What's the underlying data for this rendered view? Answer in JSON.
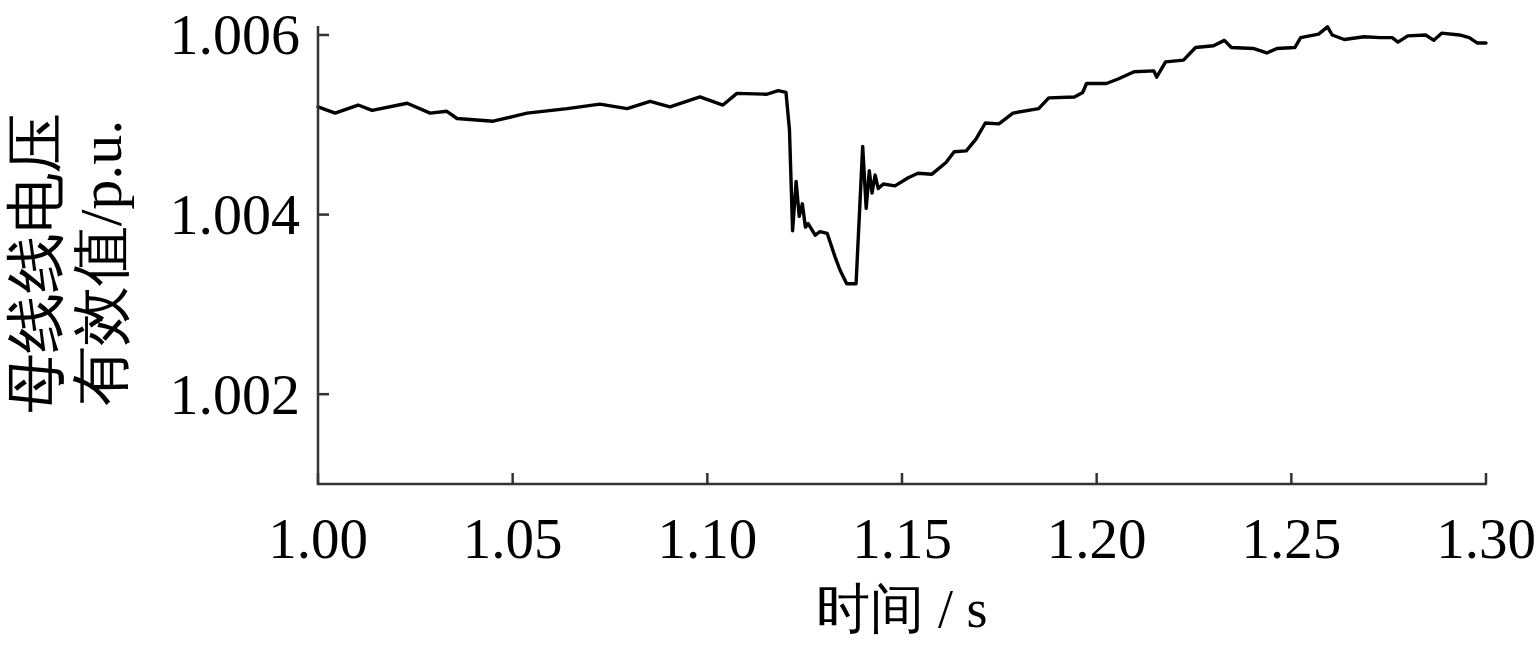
{
  "chart_data": {
    "type": "line",
    "xlabel": "时间 / s",
    "ylabel": "母线线电压有效值/p.u.",
    "line_style": "solid",
    "xlim": [
      1.0,
      1.3
    ],
    "ylim": [
      1.001,
      1.0061
    ],
    "xticks": [
      {
        "value": 1.0,
        "label": "1.00"
      },
      {
        "value": 1.05,
        "label": "1.05"
      },
      {
        "value": 1.1,
        "label": "1.10"
      },
      {
        "value": 1.15,
        "label": "1.15"
      },
      {
        "value": 1.2,
        "label": "1.20"
      },
      {
        "value": 1.25,
        "label": "1.25"
      },
      {
        "value": 1.3,
        "label": "1.30"
      }
    ],
    "yticks": [
      1.002,
      1.004,
      1.006
    ],
    "series": [
      {
        "color": "#000000",
        "x": [
          1.0,
          1.0044,
          1.0103,
          1.0139,
          1.0229,
          1.0288,
          1.0331,
          1.0357,
          1.045,
          1.0537,
          1.064,
          1.0724,
          1.0794,
          1.0853,
          1.0904,
          1.0981,
          1.104,
          1.1076,
          1.1153,
          1.1182,
          1.1202,
          1.1211,
          1.1219,
          1.1228,
          1.1236,
          1.1244,
          1.1252,
          1.1259,
          1.1277,
          1.1289,
          1.1308,
          1.1328,
          1.1341,
          1.1358,
          1.1382,
          1.1399,
          1.1408,
          1.1416,
          1.1423,
          1.1431,
          1.1439,
          1.1452,
          1.1482,
          1.1516,
          1.1541,
          1.1577,
          1.1613,
          1.1634,
          1.1665,
          1.169,
          1.1714,
          1.1749,
          1.1785,
          1.1851,
          1.1877,
          1.1943,
          1.1964,
          1.1974,
          1.2025,
          1.2055,
          1.2096,
          1.2147,
          1.2154,
          1.2177,
          1.2223,
          1.2254,
          1.23,
          1.2328,
          1.2346,
          1.2402,
          1.2437,
          1.2463,
          1.2509,
          1.2524,
          1.257,
          1.2593,
          1.2605,
          1.2636,
          1.2687,
          1.2728,
          1.2759,
          1.2774,
          1.2799,
          1.2845,
          1.2866,
          1.2886,
          1.2932,
          1.2957,
          1.2978,
          1.3
        ],
        "values": [
          1.0052,
          1.00513,
          1.00522,
          1.00516,
          1.00524,
          1.00513,
          1.00515,
          1.00507,
          1.00504,
          1.00513,
          1.00518,
          1.00523,
          1.00518,
          1.00526,
          1.0052,
          1.00531,
          1.00522,
          1.00535,
          1.00534,
          1.00538,
          1.00536,
          1.00494,
          1.00382,
          1.00437,
          1.00398,
          1.00412,
          1.00386,
          1.0039,
          1.00377,
          1.00381,
          1.00379,
          1.00353,
          1.00338,
          1.00323,
          1.00323,
          1.00476,
          1.00407,
          1.00449,
          1.00424,
          1.00444,
          1.00429,
          1.00434,
          1.00432,
          1.00441,
          1.00446,
          1.00445,
          1.00458,
          1.0047,
          1.00471,
          1.00484,
          1.00502,
          1.00501,
          1.00513,
          1.00518,
          1.0053,
          1.00531,
          1.00536,
          1.00546,
          1.00546,
          1.00551,
          1.00559,
          1.0056,
          1.00553,
          1.0057,
          1.00572,
          1.00586,
          1.00588,
          1.00594,
          1.00586,
          1.00585,
          1.0058,
          1.00585,
          1.00586,
          1.00597,
          1.00601,
          1.00609,
          1.006,
          1.00595,
          1.00598,
          1.00597,
          1.00597,
          1.00592,
          1.00599,
          1.006,
          1.00594,
          1.00602,
          1.006,
          1.00597,
          1.00591,
          1.00591
        ]
      }
    ]
  }
}
